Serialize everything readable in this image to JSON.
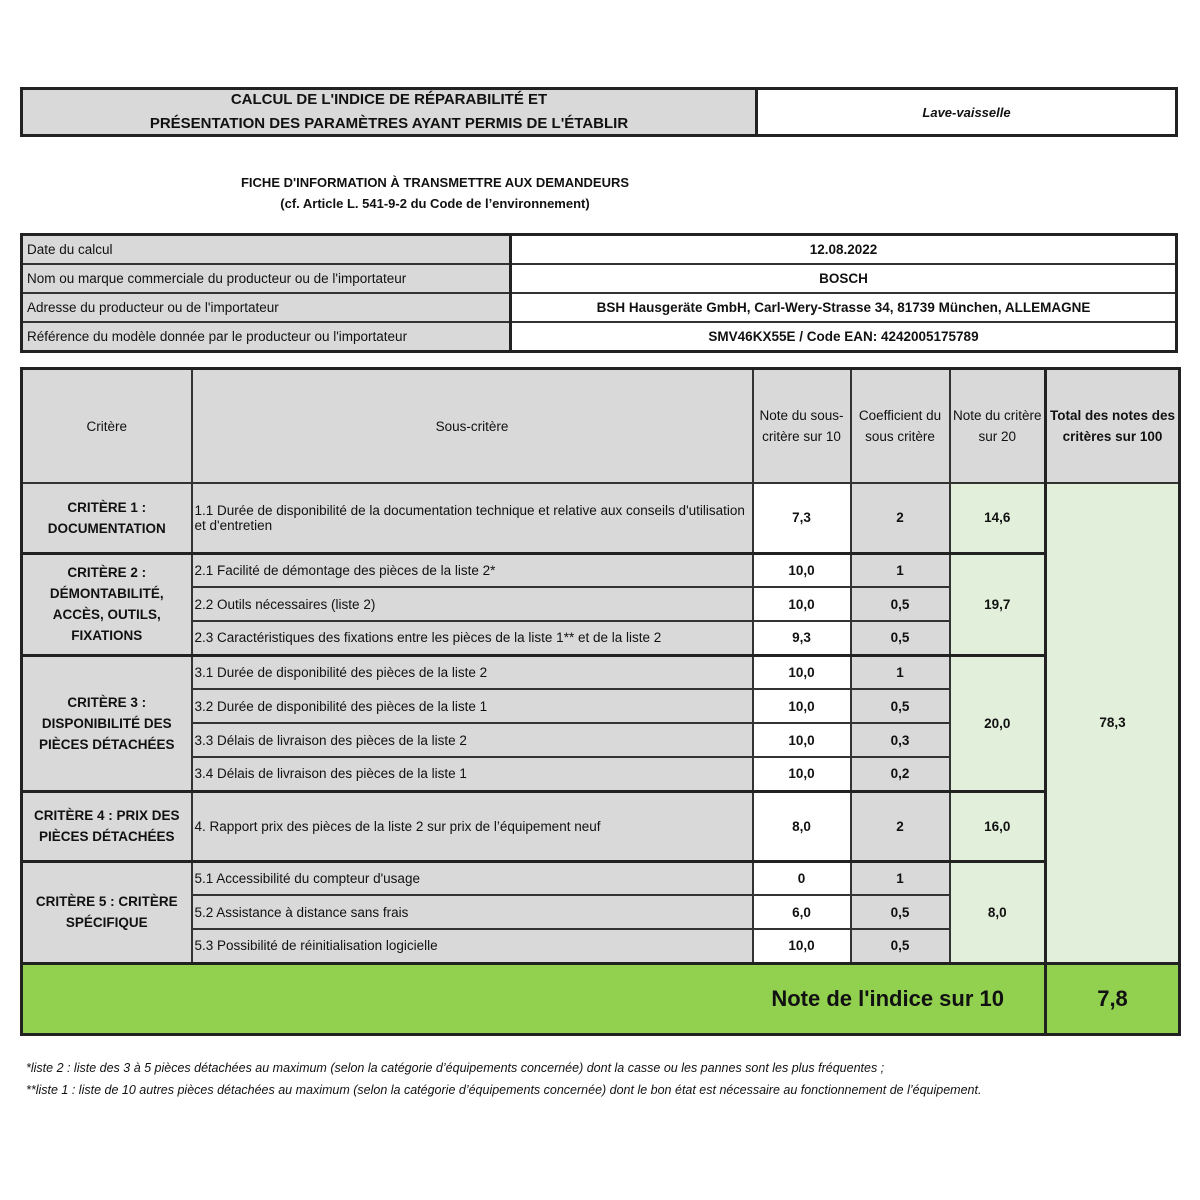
{
  "header": {
    "title_line1": "CALCUL DE L'INDICE DE RÉPARABILITÉ ET",
    "title_line2": "PRÉSENTATION DES PARAMÈTRES AYANT PERMIS DE L'ÉTABLIR",
    "category": "Lave-vaisselle"
  },
  "subtitle": {
    "line1": "FICHE D'INFORMATION À TRANSMETTRE AUX DEMANDEURS",
    "line2": "(cf. Article L. 541-9-2 du Code de l’environnement)"
  },
  "info": [
    {
      "label": "Date du calcul",
      "value": "12.08.2022"
    },
    {
      "label": "Nom ou marque commerciale du producteur ou de l'importateur",
      "value": "BOSCH"
    },
    {
      "label": "Adresse du producteur ou de l'importateur",
      "value": "BSH Hausgeräte GmbH, Carl-Wery-Strasse 34, 81739 München, ALLEMAGNE"
    },
    {
      "label": "Référence du modèle donnée par le producteur ou l'importateur",
      "value": "SMV46KX55E / Code EAN: 4242005175789"
    }
  ],
  "columns": {
    "critere": "Critère",
    "sous_critere": "Sous-critère",
    "note_sous": "Note du sous-critère sur 10",
    "coef": "Coefficient du sous critère",
    "note_crit": "Note du critère sur 20",
    "total": "Total des notes des critères sur 100"
  },
  "criteria": [
    {
      "name": "CRITÈRE 1 : DOCUMENTATION",
      "note": "14,6",
      "subs": [
        {
          "label": "1.1 Durée de disponibilité de la documentation technique et relative aux conseils d'utilisation et d'entretien",
          "note": "7,3",
          "coef": "2"
        }
      ]
    },
    {
      "name": "CRITÈRE 2 : DÉMONTABILITÉ, ACCÈS, OUTILS, FIXATIONS",
      "note": "19,7",
      "subs": [
        {
          "label": "2.1 Facilité de démontage des pièces de la liste 2*",
          "note": "10,0",
          "coef": "1"
        },
        {
          "label": "2.2 Outils nécessaires (liste 2)",
          "note": "10,0",
          "coef": "0,5"
        },
        {
          "label": "2.3 Caractéristiques des fixations entre les pièces de la liste 1** et de la liste 2",
          "note": "9,3",
          "coef": "0,5"
        }
      ]
    },
    {
      "name": "CRITÈRE 3 : DISPONIBILITÉ DES PIÈCES DÉTACHÉES",
      "note": "20,0",
      "subs": [
        {
          "label": "3.1 Durée de disponibilité des pièces de la liste 2",
          "note": "10,0",
          "coef": "1"
        },
        {
          "label": "3.2 Durée de disponibilité des pièces de la liste 1",
          "note": "10,0",
          "coef": "0,5"
        },
        {
          "label": "3.3 Délais de livraison des pièces de la liste 2",
          "note": "10,0",
          "coef": "0,3"
        },
        {
          "label": "3.4 Délais de livraison des pièces de la liste 1",
          "note": "10,0",
          "coef": "0,2"
        }
      ]
    },
    {
      "name": "CRITÈRE 4 : PRIX DES PIÈCES DÉTACHÉES",
      "note": "16,0",
      "subs": [
        {
          "label": "4. Rapport prix des pièces de la liste 2 sur prix de l’équipement neuf",
          "note": "8,0",
          "coef": "2"
        }
      ]
    },
    {
      "name": "CRITÈRE 5 : CRITÈRE SPÉCIFIQUE",
      "note": "8,0",
      "subs": [
        {
          "label": "5.1 Accessibilité du compteur d'usage",
          "note": "0",
          "coef": "1"
        },
        {
          "label": "5.2 Assistance à distance sans frais",
          "note": "6,0",
          "coef": "0,5"
        },
        {
          "label": "5.3 Possibilité de réinitialisation logicielle",
          "note": "10,0",
          "coef": "0,5"
        }
      ]
    }
  ],
  "total": "78,3",
  "final": {
    "label": "Note de l'indice sur 10",
    "value": "7,8"
  },
  "footnotes": [
    "*liste 2 : liste des 3 à 5 pièces détachées au maximum (selon la catégorie d’équipements concernée) dont la casse ou les pannes sont les plus fréquentes ;",
    "**liste 1 : liste de 10 autres pièces détachées au maximum (selon la catégorie d’équipements concernée) dont le bon état est nécessaire au fonctionnement de l’équipement."
  ],
  "colors": {
    "gray": "#d9d9d9",
    "light_green": "#e2efda",
    "green": "#92d050"
  }
}
